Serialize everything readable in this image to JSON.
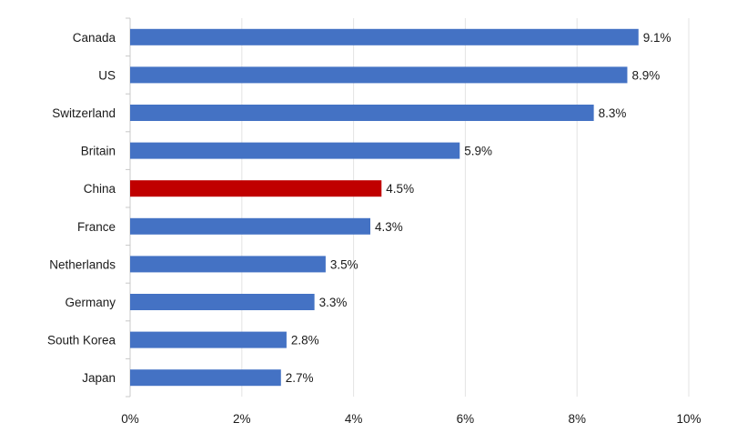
{
  "chart_data": {
    "type": "bar",
    "orientation": "horizontal",
    "title": "",
    "xlabel": "",
    "ylabel": "",
    "categories": [
      "Canada",
      "US",
      "Switzerland",
      "Britain",
      "China",
      "France",
      "Netherlands",
      "Germany",
      "South Korea",
      "Japan"
    ],
    "values": [
      9.1,
      8.9,
      8.3,
      5.9,
      4.5,
      4.3,
      3.5,
      3.3,
      2.8,
      2.7
    ],
    "value_labels": [
      "9.1%",
      "8.9%",
      "8.3%",
      "5.9%",
      "4.5%",
      "4.3%",
      "3.5%",
      "3.3%",
      "2.8%",
      "2.7%"
    ],
    "xlim": [
      0,
      10
    ],
    "x_ticks": [
      0,
      2,
      4,
      6,
      8,
      10
    ],
    "x_tick_labels": [
      "0%",
      "2%",
      "4%",
      "6%",
      "8%",
      "10%"
    ],
    "grid": true,
    "highlight_category": "China",
    "colors": {
      "bar": "#4472c4",
      "highlight": "#c00000",
      "grid": "#e3e3e3",
      "axis": "#c8c8c8"
    }
  }
}
